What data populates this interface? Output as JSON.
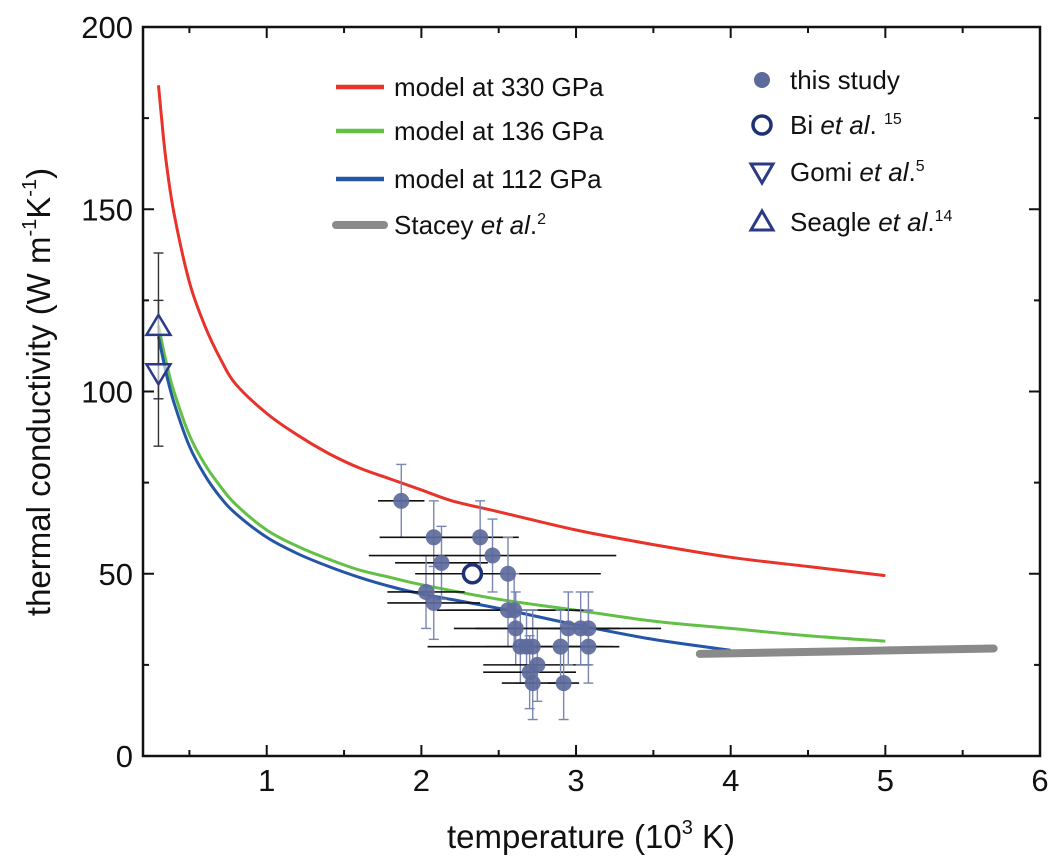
{
  "chart_data": {
    "type": "scatter",
    "xlabel": {
      "prefix": "temperature (10",
      "sup": "3",
      "suffix": " K)"
    },
    "ylabel": {
      "prefix": "thermal conductivity (W m",
      "sup1": "-1",
      "mid": "K",
      "sup2": "-1",
      "suffix": ")"
    },
    "xlim": [
      0.2,
      6.0
    ],
    "ylim": [
      0,
      200
    ],
    "x_ticks": [
      "1",
      "2",
      "3",
      "4",
      "5",
      "6"
    ],
    "y_ticks": [
      "0",
      "50",
      "100",
      "150",
      "200"
    ],
    "grid": false,
    "legend_position": "top (two columns)",
    "line_series": [
      {
        "name": "model at 330 GPa",
        "color": "#e8322a",
        "points": [
          [
            0.3,
            184
          ],
          [
            0.32,
            175
          ],
          [
            0.35,
            163
          ],
          [
            0.4,
            149
          ],
          [
            0.5,
            130
          ],
          [
            0.6,
            118
          ],
          [
            0.7,
            109
          ],
          [
            0.8,
            102
          ],
          [
            1.0,
            94
          ],
          [
            1.2,
            88
          ],
          [
            1.4,
            83
          ],
          [
            1.6,
            79
          ],
          [
            1.8,
            76
          ],
          [
            2.0,
            73
          ],
          [
            2.2,
            70
          ],
          [
            2.5,
            67
          ],
          [
            3.0,
            62
          ],
          [
            3.5,
            58
          ],
          [
            4.0,
            54.5
          ],
          [
            4.5,
            52
          ],
          [
            5.0,
            49.5
          ]
        ]
      },
      {
        "name": "model at 136 GPa",
        "color": "#62c046",
        "points": [
          [
            0.3,
            118
          ],
          [
            0.35,
            108
          ],
          [
            0.4,
            100
          ],
          [
            0.5,
            88
          ],
          [
            0.6,
            80
          ],
          [
            0.7,
            74
          ],
          [
            0.8,
            69
          ],
          [
            1.0,
            62
          ],
          [
            1.2,
            57.5
          ],
          [
            1.4,
            54
          ],
          [
            1.6,
            51
          ],
          [
            1.8,
            49
          ],
          [
            2.0,
            47
          ],
          [
            2.5,
            43
          ],
          [
            3.0,
            40
          ],
          [
            3.5,
            37
          ],
          [
            4.0,
            35
          ],
          [
            4.5,
            33
          ],
          [
            5.0,
            31.5
          ]
        ]
      },
      {
        "name": "model at 112 GPa",
        "color": "#2556a6",
        "points": [
          [
            0.3,
            115
          ],
          [
            0.35,
            105
          ],
          [
            0.4,
            97
          ],
          [
            0.5,
            85
          ],
          [
            0.6,
            77
          ],
          [
            0.7,
            71
          ],
          [
            0.8,
            66.5
          ],
          [
            1.0,
            60
          ],
          [
            1.2,
            55.5
          ],
          [
            1.4,
            52
          ],
          [
            1.6,
            49
          ],
          [
            1.8,
            46.5
          ],
          [
            2.0,
            44.5
          ],
          [
            2.5,
            40.5
          ],
          [
            3.0,
            36
          ],
          [
            3.5,
            32
          ],
          [
            4.0,
            29
          ]
        ]
      },
      {
        "name": "Stacey et al.",
        "color": "#8a8a8a",
        "points": [
          [
            3.8,
            28
          ],
          [
            5.7,
            29.5
          ]
        ]
      }
    ],
    "this_study": {
      "name": "this study",
      "color": "#5d6a9c",
      "points": [
        {
          "x": 1.87,
          "y": 70,
          "xerr": 0.15,
          "yerr": 10
        },
        {
          "x": 2.08,
          "y": 60,
          "xerr": 0.35,
          "yerr": 10
        },
        {
          "x": 2.13,
          "y": 53,
          "xerr": 0.3,
          "yerr": 10
        },
        {
          "x": 2.03,
          "y": 45,
          "xerr": 0.25,
          "yerr": 10
        },
        {
          "x": 2.08,
          "y": 42,
          "xerr": 0.3,
          "yerr": 10
        },
        {
          "x": 2.38,
          "y": 60,
          "xerr": 0.25,
          "yerr": 10
        },
        {
          "x": 2.46,
          "y": 55,
          "xerr": 0.8,
          "yerr": 10
        },
        {
          "x": 2.56,
          "y": 50,
          "xerr": 0.6,
          "yerr": 10
        },
        {
          "x": 2.56,
          "y": 40,
          "xerr": 0.4,
          "yerr": 10
        },
        {
          "x": 2.6,
          "y": 40,
          "xerr": 0.5,
          "yerr": 10
        },
        {
          "x": 2.61,
          "y": 35,
          "xerr": 0.4,
          "yerr": 10
        },
        {
          "x": 2.64,
          "y": 30,
          "xerr": 0.6,
          "yerr": 10
        },
        {
          "x": 2.68,
          "y": 30,
          "xerr": 0.5,
          "yerr": 10
        },
        {
          "x": 2.72,
          "y": 30,
          "xerr": 0.3,
          "yerr": 10
        },
        {
          "x": 2.7,
          "y": 23,
          "xerr": 0.3,
          "yerr": 10
        },
        {
          "x": 2.72,
          "y": 20,
          "xerr": 0.2,
          "yerr": 10
        },
        {
          "x": 2.75,
          "y": 25,
          "xerr": 0.35,
          "yerr": 10
        },
        {
          "x": 2.9,
          "y": 30,
          "xerr": 0.2,
          "yerr": 10
        },
        {
          "x": 2.95,
          "y": 35,
          "xerr": 0.6,
          "yerr": 10
        },
        {
          "x": 3.03,
          "y": 35,
          "xerr": 0.2,
          "yerr": 10
        },
        {
          "x": 3.08,
          "y": 35,
          "xerr": 0.2,
          "yerr": 10
        },
        {
          "x": 3.08,
          "y": 30,
          "xerr": 0.2,
          "yerr": 10
        },
        {
          "x": 2.92,
          "y": 20,
          "xerr": 0.1,
          "yerr": 10
        }
      ]
    },
    "bi": {
      "name": "Bi",
      "italic": "et al",
      "suffix": ".",
      "ref": "15",
      "color": "#1f3276",
      "x": 2.33,
      "y": 50,
      "xerr": 0.2,
      "yerr": 0
    },
    "gomi": {
      "name": "Gomi",
      "italic": "et al",
      "suffix": ".",
      "ref": "5",
      "color": "#2a3a86",
      "x": 0.3,
      "y": 105,
      "yerr": 20
    },
    "seagle": {
      "name": "Seagle",
      "italic": "et al",
      "suffix": ".",
      "ref": "14",
      "color": "#2a3a86",
      "x": 0.3,
      "y": 118,
      "yerr": 20
    },
    "stacey_label": {
      "name": "Stacey",
      "italic": "et al",
      "suffix": ".",
      "ref": "2"
    }
  }
}
